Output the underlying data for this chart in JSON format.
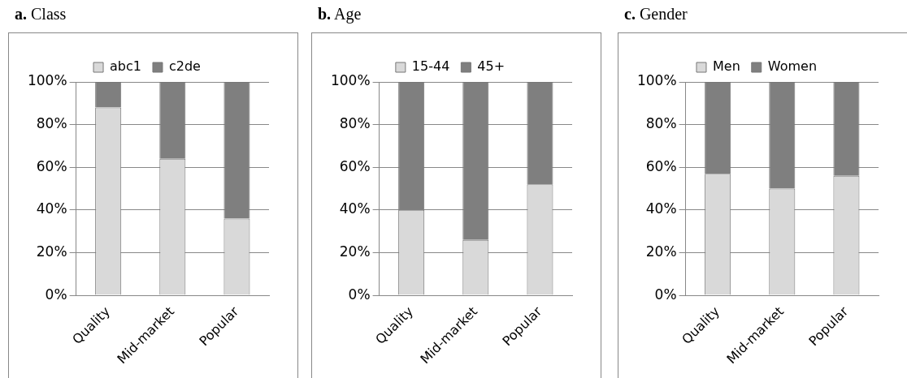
{
  "chart_data": [
    {
      "type": "bar",
      "title": "a. Class",
      "categories": [
        "Quality",
        "Mid-market",
        "Popular"
      ],
      "stacked": true,
      "legend": "top",
      "grid": "y",
      "series": [
        {
          "name": "abc1",
          "color": "#d9d9d9",
          "values": [
            88,
            64,
            36
          ]
        },
        {
          "name": "c2de",
          "color": "#7f7f7f",
          "values": [
            12,
            36,
            64
          ]
        }
      ],
      "ylim": [
        0,
        100
      ],
      "yticks": [
        {
          "value": 0,
          "label": "0%"
        },
        {
          "value": 20,
          "label": "20%"
        },
        {
          "value": 40,
          "label": "40%"
        },
        {
          "value": 60,
          "label": "60%"
        },
        {
          "value": 80,
          "label": "80%"
        },
        {
          "value": 100,
          "label": "100%"
        }
      ]
    },
    {
      "type": "bar",
      "title": "b. Age",
      "categories": [
        "Quality",
        "Mid-market",
        "Popular"
      ],
      "stacked": true,
      "legend": "top",
      "grid": "y",
      "series": [
        {
          "name": "15-44",
          "color": "#d9d9d9",
          "values": [
            40,
            26,
            52
          ]
        },
        {
          "name": "45+",
          "color": "#7f7f7f",
          "values": [
            60,
            74,
            48
          ]
        }
      ],
      "ylim": [
        0,
        100
      ],
      "yticks": [
        {
          "value": 0,
          "label": "0%"
        },
        {
          "value": 20,
          "label": "20%"
        },
        {
          "value": 40,
          "label": "40%"
        },
        {
          "value": 60,
          "label": "60%"
        },
        {
          "value": 80,
          "label": "80%"
        },
        {
          "value": 100,
          "label": "100%"
        }
      ]
    },
    {
      "type": "bar",
      "title": "c. Gender",
      "categories": [
        "Quality",
        "Mid-market",
        "Popular"
      ],
      "stacked": true,
      "legend": "top",
      "grid": "y",
      "series": [
        {
          "name": "Men",
          "color": "#d9d9d9",
          "values": [
            57,
            50,
            56
          ]
        },
        {
          "name": "Women",
          "color": "#7f7f7f",
          "values": [
            43,
            50,
            44
          ]
        }
      ],
      "ylim": [
        0,
        100
      ],
      "yticks": [
        {
          "value": 0,
          "label": "0%"
        },
        {
          "value": 20,
          "label": "20%"
        },
        {
          "value": 40,
          "label": "40%"
        },
        {
          "value": 60,
          "label": "60%"
        },
        {
          "value": 80,
          "label": "80%"
        },
        {
          "value": 100,
          "label": "100%"
        }
      ]
    }
  ]
}
